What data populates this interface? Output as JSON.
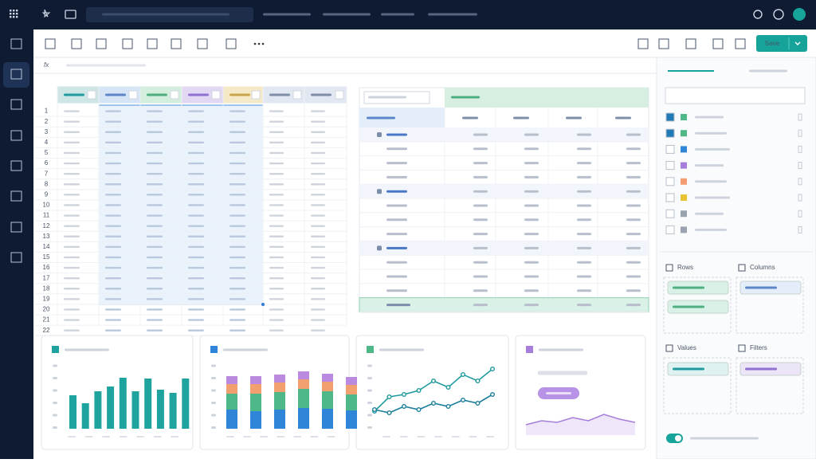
{
  "toolbar": {
    "save": "Save"
  },
  "formula_bar": {
    "label": "fx"
  },
  "spreadsheet": {
    "row_numbers": [
      1,
      2,
      3,
      4,
      5,
      6,
      7,
      8,
      9,
      10,
      11,
      12,
      13,
      14,
      15,
      16,
      17,
      18,
      19,
      20,
      21,
      22
    ]
  },
  "field_panel": {
    "zones": [
      {
        "label": "Rows"
      },
      {
        "label": "Columns"
      },
      {
        "label": "Values"
      },
      {
        "label": "Filters"
      }
    ]
  },
  "widgets": [
    {
      "type": "bar",
      "color": "#1fa39e",
      "values": [
        42,
        32,
        47,
        53,
        64,
        47,
        63,
        49,
        45,
        63
      ]
    },
    {
      "type": "stacked_bar",
      "series": [
        {
          "color": "#2f86d9",
          "values": [
            24,
            22,
            24,
            26,
            25,
            23
          ]
        },
        {
          "color": "#4fb889",
          "values": [
            20,
            22,
            22,
            24,
            22,
            20
          ]
        },
        {
          "color": "#f2a070",
          "values": [
            12,
            12,
            12,
            12,
            12,
            12
          ]
        },
        {
          "color": "#b98ae0",
          "values": [
            10,
            10,
            10,
            10,
            10,
            10
          ]
        }
      ]
    },
    {
      "type": "line",
      "series": [
        {
          "color": "#1f9a9e",
          "values": [
            22,
            40,
            43,
            48,
            60,
            52,
            68,
            60,
            75
          ]
        },
        {
          "color": "#1d7f9a",
          "values": [
            24,
            20,
            28,
            24,
            32,
            28,
            36,
            32,
            43
          ]
        }
      ]
    },
    {
      "type": "area",
      "color": "#a77ddb",
      "values": [
        5,
        10,
        8,
        14,
        10,
        18,
        12,
        8
      ]
    }
  ]
}
